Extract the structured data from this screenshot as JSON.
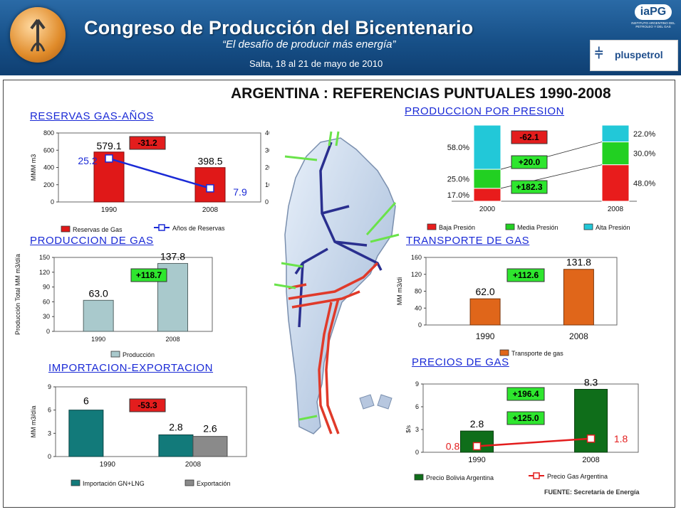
{
  "header": {
    "title": "Congreso de Producción del Bicentenario",
    "subtitle": "“El desafío de producir más energía”",
    "date": "Salta, 18 al 21 de mayo de 2010",
    "org_logo_text": "iaPG",
    "org_logo_caption": "INSTITUTO ARGENTINO DEL PETROLEO Y DEL GAS",
    "sponsor": "pluspetrol"
  },
  "main_title": "ARGENTINA : REFERENCIAS PUNTUALES 1990-2008",
  "source": "FUENTE: Secretaría de Energía",
  "colors": {
    "banner": "#175088",
    "title_blue": "#1a2ad6",
    "red": "#e31d1d",
    "teal": "#0f7b7b",
    "green": "#1d8c1d"
  },
  "chart_data": [
    {
      "id": "reservas",
      "type": "bar",
      "title": "RESERVAS GAS-AÑOS",
      "categories": [
        "1990",
        "2008"
      ],
      "ylabel": "MMM m3",
      "ylabel_right": "Años",
      "ylim": [
        0,
        800
      ],
      "yticks": [
        "0",
        "200",
        "400",
        "600",
        "800"
      ],
      "ylim_right": [
        0,
        40
      ],
      "yticks_right": [
        "0",
        "10",
        "20",
        "30",
        "40"
      ],
      "series": [
        {
          "name": "Reservas de Gas",
          "kind": "bar",
          "values": [
            579.1,
            398.5
          ],
          "labels": [
            "579.1",
            "398.5"
          ],
          "color": "#e01818"
        },
        {
          "name": "Años de Reservas",
          "kind": "line",
          "axis": "right",
          "values": [
            25.2,
            7.9
          ],
          "labels": [
            "25.2",
            "7.9"
          ],
          "color": "#1a2ad6"
        }
      ],
      "annotations": [
        "-31.2"
      ]
    },
    {
      "id": "produccion_gas",
      "type": "bar",
      "title": "PRODUCCION DE GAS",
      "categories": [
        "1990",
        "2008"
      ],
      "ylabel": "Producción Total MM m3/día",
      "ylim": [
        0,
        150
      ],
      "yticks": [
        "0",
        "30",
        "60",
        "90",
        "120",
        "150"
      ],
      "series": [
        {
          "name": "Producción",
          "values": [
            63.0,
            137.8
          ],
          "labels": [
            "63.0",
            "137.8"
          ],
          "color": "#a9c9cc"
        }
      ],
      "annotations": [
        "+118.7"
      ]
    },
    {
      "id": "import_export",
      "type": "bar",
      "title": "IMPORTACION-EXPORTACION",
      "categories": [
        "1990",
        "2008"
      ],
      "ylabel": "MM m3/día",
      "ylim": [
        0,
        9
      ],
      "yticks": [
        "0",
        "3",
        "6",
        "9"
      ],
      "series": [
        {
          "name": "Importación GN+LNG",
          "values": [
            6,
            2.8
          ],
          "labels": [
            "6",
            "2.8"
          ],
          "color": "#127a7a"
        },
        {
          "name": "Exportación",
          "values": [
            0,
            2.6
          ],
          "labels": [
            "",
            "2.6"
          ],
          "color": "#8a8a8a"
        }
      ],
      "annotations": [
        "-53.3"
      ]
    },
    {
      "id": "produccion_presion",
      "type": "bar",
      "stacked": true,
      "title": "PRODUCCION POR PRESION",
      "categories": [
        "2000",
        "2008"
      ],
      "series": [
        {
          "name": "Baja Presión",
          "values": [
            17.0,
            48.0
          ],
          "labels": [
            "17.0%",
            "48.0%"
          ],
          "color": "#e81c1c"
        },
        {
          "name": "Media Presión",
          "values": [
            25.0,
            30.0
          ],
          "labels": [
            "25.0%",
            "30.0%"
          ],
          "color": "#22d022"
        },
        {
          "name": "Alta Presión",
          "values": [
            58.0,
            22.0
          ],
          "labels": [
            "58.0%",
            "22.0%"
          ],
          "color": "#22c8d8"
        }
      ],
      "annotations": [
        "-62.1",
        "+20.0",
        "+182.3"
      ]
    },
    {
      "id": "transporte",
      "type": "bar",
      "title": "TRANSPORTE DE GAS",
      "categories": [
        "1990",
        "2008"
      ],
      "ylabel": "MM m3/di",
      "ylim": [
        0,
        160
      ],
      "yticks": [
        "0",
        "40",
        "80",
        "120",
        "160"
      ],
      "series": [
        {
          "name": "Transporte de gas",
          "values": [
            62.0,
            131.8
          ],
          "labels": [
            "62.0",
            "131.8"
          ],
          "color": "#e0661a"
        }
      ],
      "annotations": [
        "+112.6"
      ]
    },
    {
      "id": "precios",
      "type": "bar",
      "title": "PRECIOS DE GAS",
      "categories": [
        "1990",
        "2008"
      ],
      "ylabel": "$/s",
      "ylim": [
        0,
        9
      ],
      "yticks": [
        "0",
        "3",
        "6",
        "9"
      ],
      "series": [
        {
          "name": "Precio Bolivia Argentina",
          "kind": "bar",
          "values": [
            2.8,
            8.3
          ],
          "labels": [
            "2.8",
            "8.3"
          ],
          "color": "#0f6e1a"
        },
        {
          "name": "Precio Gas Argentina",
          "kind": "line",
          "values": [
            0.8,
            1.8
          ],
          "labels": [
            "0.8",
            "1.8"
          ],
          "color": "#e31d1d"
        }
      ],
      "annotations": [
        "+196.4",
        "+125.0"
      ]
    }
  ]
}
